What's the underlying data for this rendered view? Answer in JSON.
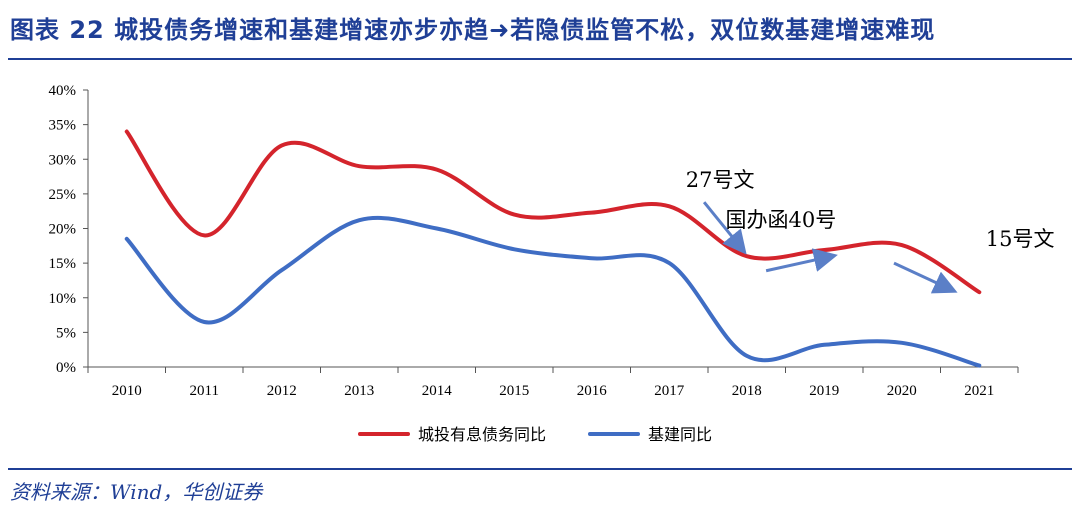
{
  "title": "图表 22  城投债务增速和基建增速亦步亦趋➜若隐债监管不松，双位数基建增速难现",
  "source": "资料来源：Wind，华创证券",
  "colors": {
    "accent": "#1f3f96",
    "series_red": "#d4242c",
    "series_blue": "#3f6dc4",
    "arrow": "#5b7fc7"
  },
  "chart_data": {
    "type": "line",
    "title": "",
    "xlabel": "",
    "ylabel": "",
    "categories": [
      "2010",
      "2011",
      "2012",
      "2013",
      "2014",
      "2015",
      "2016",
      "2017",
      "2018",
      "2019",
      "2020",
      "2021"
    ],
    "ylim": [
      0,
      40
    ],
    "yticks": [
      0,
      5,
      10,
      15,
      20,
      25,
      30,
      35,
      40
    ],
    "ytick_labels": [
      "0%",
      "5%",
      "10%",
      "15%",
      "20%",
      "25%",
      "30%",
      "35%",
      "40%"
    ],
    "series": [
      {
        "name": "城投有息债务同比",
        "color": "#d4242c",
        "values": [
          34.0,
          19.0,
          32.0,
          29.0,
          28.5,
          22.0,
          22.3,
          23.2,
          16.0,
          16.9,
          17.6,
          10.8
        ]
      },
      {
        "name": "基建同比",
        "color": "#3f6dc4",
        "values": [
          18.5,
          6.5,
          14.0,
          21.2,
          20.0,
          17.0,
          15.7,
          15.0,
          1.6,
          3.2,
          3.5,
          0.2
        ]
      }
    ],
    "annotations": [
      {
        "text": "27号文",
        "year": "2018",
        "arrow_from": [
          2017.45,
          23.8
        ],
        "arrow_to": [
          2017.95,
          16.9
        ]
      },
      {
        "text": "国办函40号",
        "year": "2019",
        "arrow_from": [
          2018.25,
          13.9
        ],
        "arrow_to": [
          2019.1,
          16.0
        ]
      },
      {
        "text": "15号文",
        "year": "2021",
        "arrow_from": [
          2019.9,
          15.0
        ],
        "arrow_to": [
          2020.65,
          11.1
        ]
      }
    ],
    "legend_position": "bottom",
    "grid": false
  }
}
